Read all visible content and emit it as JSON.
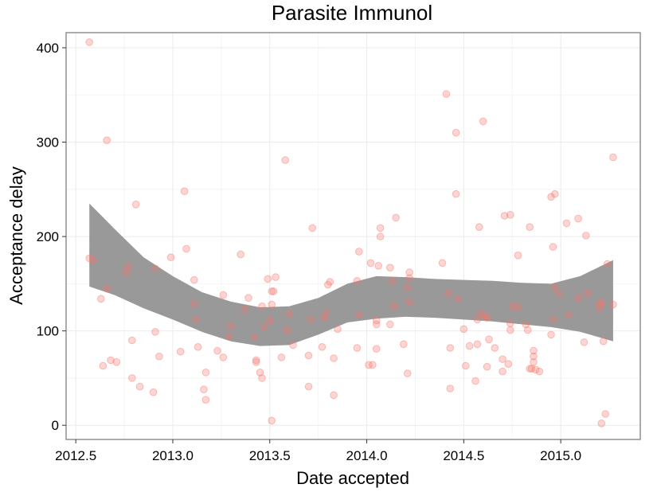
{
  "chart_data": {
    "type": "scatter",
    "title": "Parasite Immunol",
    "xlabel": "Date accepted",
    "ylabel": "Acceptance delay",
    "xlim": [
      2012.45,
      2015.41
    ],
    "ylim": [
      -15,
      416
    ],
    "x_ticks": [
      {
        "value": 2012.5,
        "label": "2012.5"
      },
      {
        "value": 2013.0,
        "label": "2013.0"
      },
      {
        "value": 2013.5,
        "label": "2013.5"
      },
      {
        "value": 2014.0,
        "label": "2014.0"
      },
      {
        "value": 2014.5,
        "label": "2014.5"
      },
      {
        "value": 2015.0,
        "label": "2015.0"
      }
    ],
    "y_ticks": [
      {
        "value": 0,
        "label": "0"
      },
      {
        "value": 100,
        "label": "100"
      },
      {
        "value": 200,
        "label": "200"
      },
      {
        "value": 300,
        "label": "300"
      },
      {
        "value": 400,
        "label": "400"
      }
    ],
    "grid": true,
    "colors": {
      "points": "#f8766d",
      "band": "#999999",
      "panel_border": "#808080",
      "grid": "#ebebeb"
    },
    "points": [
      [
        2012.57,
        406
      ],
      [
        2012.57,
        177
      ],
      [
        2012.59,
        175
      ],
      [
        2012.63,
        134
      ],
      [
        2012.64,
        63
      ],
      [
        2012.66,
        145
      ],
      [
        2012.66,
        302
      ],
      [
        2012.68,
        69
      ],
      [
        2012.71,
        67
      ],
      [
        2012.76,
        162
      ],
      [
        2012.77,
        168
      ],
      [
        2012.79,
        50
      ],
      [
        2012.79,
        90
      ],
      [
        2012.81,
        234
      ],
      [
        2012.83,
        41
      ],
      [
        2012.9,
        35
      ],
      [
        2012.91,
        166
      ],
      [
        2012.91,
        99
      ],
      [
        2012.93,
        73
      ],
      [
        2012.99,
        178
      ],
      [
        2013.04,
        78
      ],
      [
        2013.06,
        248
      ],
      [
        2013.07,
        187
      ],
      [
        2013.11,
        154
      ],
      [
        2013.11,
        129
      ],
      [
        2013.12,
        112
      ],
      [
        2013.13,
        83
      ],
      [
        2013.16,
        38
      ],
      [
        2013.17,
        27
      ],
      [
        2013.17,
        56
      ],
      [
        2013.23,
        79
      ],
      [
        2013.26,
        138
      ],
      [
        2013.26,
        72
      ],
      [
        2013.29,
        94
      ],
      [
        2013.3,
        105
      ],
      [
        2013.35,
        181
      ],
      [
        2013.37,
        123
      ],
      [
        2013.39,
        135
      ],
      [
        2013.42,
        93
      ],
      [
        2013.43,
        69
      ],
      [
        2013.43,
        67
      ],
      [
        2013.45,
        56
      ],
      [
        2013.46,
        50
      ],
      [
        2013.46,
        126
      ],
      [
        2013.47,
        104
      ],
      [
        2013.49,
        155
      ],
      [
        2013.5,
        111
      ],
      [
        2013.51,
        142
      ],
      [
        2013.51,
        128
      ],
      [
        2013.52,
        142
      ],
      [
        2013.51,
        5
      ],
      [
        2013.53,
        157
      ],
      [
        2013.56,
        72
      ],
      [
        2013.58,
        281
      ],
      [
        2013.59,
        101
      ],
      [
        2013.6,
        118
      ],
      [
        2013.62,
        85
      ],
      [
        2013.7,
        74
      ],
      [
        2013.7,
        41
      ],
      [
        2013.71,
        112
      ],
      [
        2013.72,
        209
      ],
      [
        2013.77,
        83
      ],
      [
        2013.78,
        114
      ],
      [
        2013.79,
        119
      ],
      [
        2013.8,
        149
      ],
      [
        2013.81,
        152
      ],
      [
        2013.83,
        32
      ],
      [
        2013.83,
        71
      ],
      [
        2013.85,
        102
      ],
      [
        2013.95,
        153
      ],
      [
        2013.95,
        82
      ],
      [
        2013.96,
        184
      ],
      [
        2013.96,
        117
      ],
      [
        2014.01,
        64
      ],
      [
        2014.02,
        172
      ],
      [
        2014.03,
        64
      ],
      [
        2014.05,
        81
      ],
      [
        2014.05,
        107
      ],
      [
        2014.05,
        111
      ],
      [
        2014.06,
        169
      ],
      [
        2014.07,
        200
      ],
      [
        2014.07,
        209
      ],
      [
        2014.12,
        107
      ],
      [
        2014.12,
        167
      ],
      [
        2014.13,
        153
      ],
      [
        2014.14,
        126
      ],
      [
        2014.15,
        220
      ],
      [
        2014.19,
        86
      ],
      [
        2014.21,
        55
      ],
      [
        2014.22,
        131
      ],
      [
        2014.22,
        162
      ],
      [
        2014.21,
        146
      ],
      [
        2014.22,
        156
      ],
      [
        2014.39,
        172
      ],
      [
        2014.41,
        351
      ],
      [
        2014.42,
        140
      ],
      [
        2014.43,
        82
      ],
      [
        2014.43,
        39
      ],
      [
        2014.46,
        245
      ],
      [
        2014.46,
        310
      ],
      [
        2014.47,
        134
      ],
      [
        2014.5,
        102
      ],
      [
        2014.51,
        63
      ],
      [
        2014.53,
        84
      ],
      [
        2014.56,
        47
      ],
      [
        2014.57,
        86
      ],
      [
        2014.57,
        112
      ],
      [
        2014.58,
        210
      ],
      [
        2014.59,
        118
      ],
      [
        2014.6,
        322
      ],
      [
        2014.61,
        115
      ],
      [
        2014.62,
        114
      ],
      [
        2014.62,
        62
      ],
      [
        2014.63,
        91
      ],
      [
        2014.66,
        82
      ],
      [
        2014.7,
        57
      ],
      [
        2014.7,
        70
      ],
      [
        2014.71,
        222
      ],
      [
        2014.73,
        65
      ],
      [
        2014.74,
        223
      ],
      [
        2014.74,
        108
      ],
      [
        2014.74,
        101
      ],
      [
        2014.75,
        126
      ],
      [
        2014.78,
        125
      ],
      [
        2014.78,
        180
      ],
      [
        2014.82,
        107
      ],
      [
        2014.83,
        101
      ],
      [
        2014.84,
        60
      ],
      [
        2014.84,
        210
      ],
      [
        2014.85,
        60
      ],
      [
        2014.86,
        67
      ],
      [
        2014.86,
        73
      ],
      [
        2014.86,
        79
      ],
      [
        2014.87,
        59
      ],
      [
        2014.89,
        57
      ],
      [
        2014.95,
        96
      ],
      [
        2014.95,
        242
      ],
      [
        2014.96,
        112
      ],
      [
        2014.96,
        189
      ],
      [
        2014.97,
        146
      ],
      [
        2014.97,
        245
      ],
      [
        2014.99,
        139
      ],
      [
        2015.03,
        214
      ],
      [
        2015.04,
        117
      ],
      [
        2015.09,
        135
      ],
      [
        2015.09,
        219
      ],
      [
        2015.12,
        88
      ],
      [
        2015.13,
        201
      ],
      [
        2015.14,
        140
      ],
      [
        2015.2,
        129
      ],
      [
        2015.2,
        124
      ],
      [
        2015.21,
        130
      ],
      [
        2015.21,
        2
      ],
      [
        2015.22,
        89
      ],
      [
        2015.23,
        12
      ],
      [
        2015.24,
        171
      ],
      [
        2015.27,
        128
      ],
      [
        2015.27,
        284
      ]
    ],
    "smooth": {
      "label": "confidence band",
      "x": [
        2012.57,
        2012.7,
        2012.85,
        2013.0,
        2013.15,
        2013.3,
        2013.45,
        2013.6,
        2013.75,
        2013.9,
        2014.05,
        2014.2,
        2014.35,
        2014.5,
        2014.65,
        2014.8,
        2014.95,
        2015.1,
        2015.27
      ],
      "upper": [
        235,
        208,
        178,
        158,
        141,
        131,
        125,
        126,
        135,
        150,
        158,
        157,
        155,
        154,
        153,
        151,
        150,
        158,
        175
      ],
      "lower": [
        147,
        138,
        124,
        112,
        99,
        89,
        84,
        85,
        96,
        109,
        113,
        115,
        114,
        112,
        110,
        107,
        104,
        99,
        89
      ]
    }
  }
}
